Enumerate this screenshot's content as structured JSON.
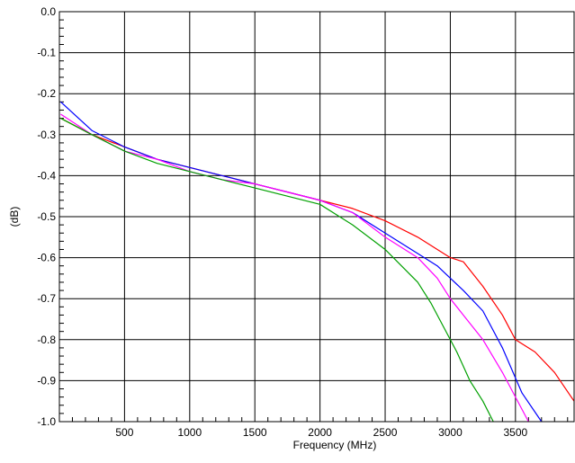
{
  "chart_data": {
    "type": "line",
    "title": "",
    "xlabel": "Frequency (MHz)",
    "ylabel": "(dB)",
    "xlim": [
      0,
      3950
    ],
    "ylim": [
      -1.0,
      0.0
    ],
    "grid": true,
    "legend": "none",
    "x_ticks": [
      500,
      1000,
      1500,
      2000,
      2500,
      3000,
      3500
    ],
    "x_tick_labels": [
      "500",
      "1000",
      "1500",
      "2000",
      "2500",
      "3000",
      "3500"
    ],
    "y_ticks": [
      0.0,
      -0.1,
      -0.2,
      -0.3,
      -0.4,
      -0.5,
      -0.6,
      -0.7,
      -0.8,
      -0.9,
      -1.0
    ],
    "y_tick_labels": [
      "0.0",
      "-0.1",
      "-0.2",
      "-0.3",
      "-0.4",
      "-0.5",
      "-0.6",
      "-0.7",
      "-0.8",
      "-0.9",
      "-1.0"
    ],
    "series": [
      {
        "color": "#ff0000",
        "x": [
          10,
          250,
          500,
          750,
          1000,
          1250,
          1500,
          1750,
          2000,
          2250,
          2500,
          2750,
          3000,
          3100,
          3250,
          3400,
          3500,
          3650,
          3800,
          3950
        ],
        "y": [
          -0.26,
          -0.3,
          -0.33,
          -0.36,
          -0.38,
          -0.4,
          -0.42,
          -0.44,
          -0.46,
          -0.48,
          -0.51,
          -0.55,
          -0.6,
          -0.61,
          -0.67,
          -0.74,
          -0.8,
          -0.83,
          -0.88,
          -0.95
        ]
      },
      {
        "color": "#0000ff",
        "x": [
          10,
          250,
          500,
          750,
          1000,
          1250,
          1500,
          1750,
          2000,
          2250,
          2500,
          2750,
          2900,
          3000,
          3100,
          3250,
          3400,
          3550,
          3700
        ],
        "y": [
          -0.22,
          -0.29,
          -0.33,
          -0.36,
          -0.38,
          -0.4,
          -0.42,
          -0.44,
          -0.46,
          -0.49,
          -0.54,
          -0.59,
          -0.62,
          -0.65,
          -0.68,
          -0.73,
          -0.82,
          -0.93,
          -1.0
        ]
      },
      {
        "color": "#ff00ff",
        "x": [
          10,
          250,
          500,
          750,
          1000,
          1250,
          1500,
          1750,
          2000,
          2250,
          2500,
          2750,
          2900,
          3000,
          3100,
          3250,
          3400,
          3600
        ],
        "y": [
          -0.25,
          -0.3,
          -0.34,
          -0.36,
          -0.39,
          -0.41,
          -0.42,
          -0.44,
          -0.46,
          -0.49,
          -0.55,
          -0.6,
          -0.65,
          -0.7,
          -0.74,
          -0.8,
          -0.88,
          -1.0
        ]
      },
      {
        "color": "#00a000",
        "x": [
          10,
          250,
          500,
          750,
          1000,
          1250,
          1500,
          1750,
          2000,
          2250,
          2500,
          2750,
          2850,
          2950,
          3050,
          3150,
          3250,
          3330
        ],
        "y": [
          -0.26,
          -0.3,
          -0.34,
          -0.37,
          -0.39,
          -0.41,
          -0.43,
          -0.45,
          -0.47,
          -0.52,
          -0.58,
          -0.66,
          -0.71,
          -0.77,
          -0.83,
          -0.9,
          -0.95,
          -1.0
        ]
      }
    ]
  }
}
